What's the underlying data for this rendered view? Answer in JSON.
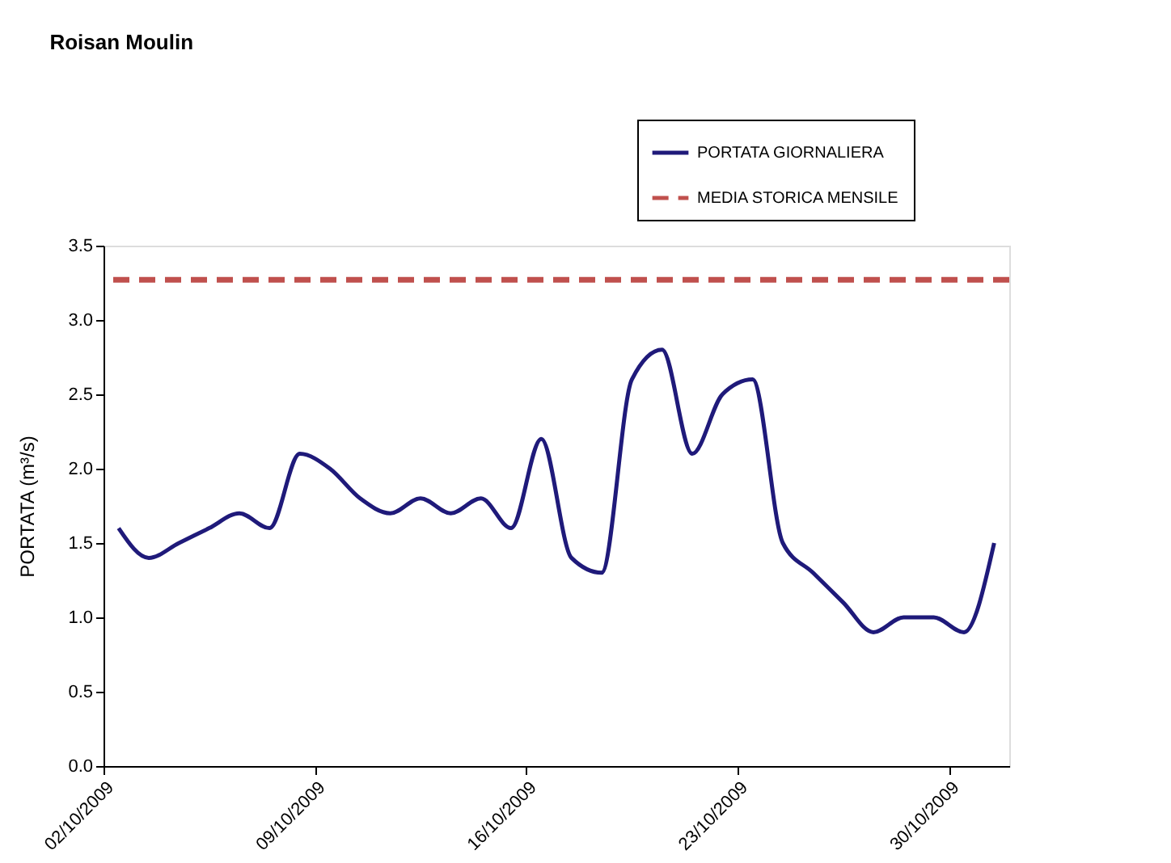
{
  "chart_data": {
    "type": "line",
    "title": "Roisan Moulin",
    "ylabel": "PORTATA (m³/s)",
    "x": [
      "2009-10-02T12:00",
      "2009-10-03T12:00",
      "2009-10-04T12:00",
      "2009-10-05T12:00",
      "2009-10-06T12:00",
      "2009-10-07T12:00",
      "2009-10-08T12:00",
      "2009-10-09T12:00",
      "2009-10-10T12:00",
      "2009-10-11T12:00",
      "2009-10-12T12:00",
      "2009-10-13T12:00",
      "2009-10-14T12:00",
      "2009-10-15T12:00",
      "2009-10-16T12:00",
      "2009-10-17T12:00",
      "2009-10-18T12:00",
      "2009-10-19T12:00",
      "2009-10-20T12:00",
      "2009-10-21T12:00",
      "2009-10-22T12:00",
      "2009-10-23T12:00",
      "2009-10-24T12:00",
      "2009-10-25T12:00",
      "2009-10-26T12:00",
      "2009-10-27T12:00",
      "2009-10-28T12:00",
      "2009-10-29T12:00",
      "2009-10-30T12:00",
      "2009-10-31T12:00"
    ],
    "series": [
      {
        "name": "PORTATA GIORNALIERA",
        "color": "#1f1a7a",
        "values": [
          1.6,
          1.4,
          1.5,
          1.6,
          1.7,
          1.6,
          2.1,
          2.0,
          1.8,
          1.7,
          1.8,
          1.7,
          1.8,
          1.6,
          2.2,
          1.4,
          1.3,
          2.6,
          2.8,
          2.1,
          2.5,
          2.6,
          1.5,
          1.3,
          1.1,
          0.9,
          1.0,
          1.0,
          0.9,
          1.5
        ]
      }
    ],
    "ref_lines": [
      {
        "axis": "y",
        "value": 3.27,
        "label": "MEDIA STORICA MENSILE",
        "color": "#c0504d",
        "line_style": "dashed"
      }
    ],
    "xlim": [
      "2009-10-02",
      "2009-11-01"
    ],
    "xticks": [
      {
        "value": "2009-10-02",
        "label": "02/10/2009"
      },
      {
        "value": "2009-10-09",
        "label": "09/10/2009"
      },
      {
        "value": "2009-10-16",
        "label": "16/10/2009"
      },
      {
        "value": "2009-10-23",
        "label": "23/10/2009"
      },
      {
        "value": "2009-10-30",
        "label": "30/10/2009"
      }
    ],
    "ylim": [
      0,
      3.5
    ],
    "yticks": [
      {
        "value": 0,
        "label": "0.0"
      },
      {
        "value": 0.5,
        "label": "0.5"
      },
      {
        "value": 1,
        "label": "1.0"
      },
      {
        "value": 1.5,
        "label": "1.5"
      },
      {
        "value": 2,
        "label": "2.0"
      },
      {
        "value": 2.5,
        "label": "2.5"
      },
      {
        "value": 3,
        "label": "3.0"
      },
      {
        "value": 3.5,
        "label": "3.5"
      }
    ],
    "grid": false,
    "legend": "top right",
    "marker": "none",
    "line_style": "solid"
  }
}
